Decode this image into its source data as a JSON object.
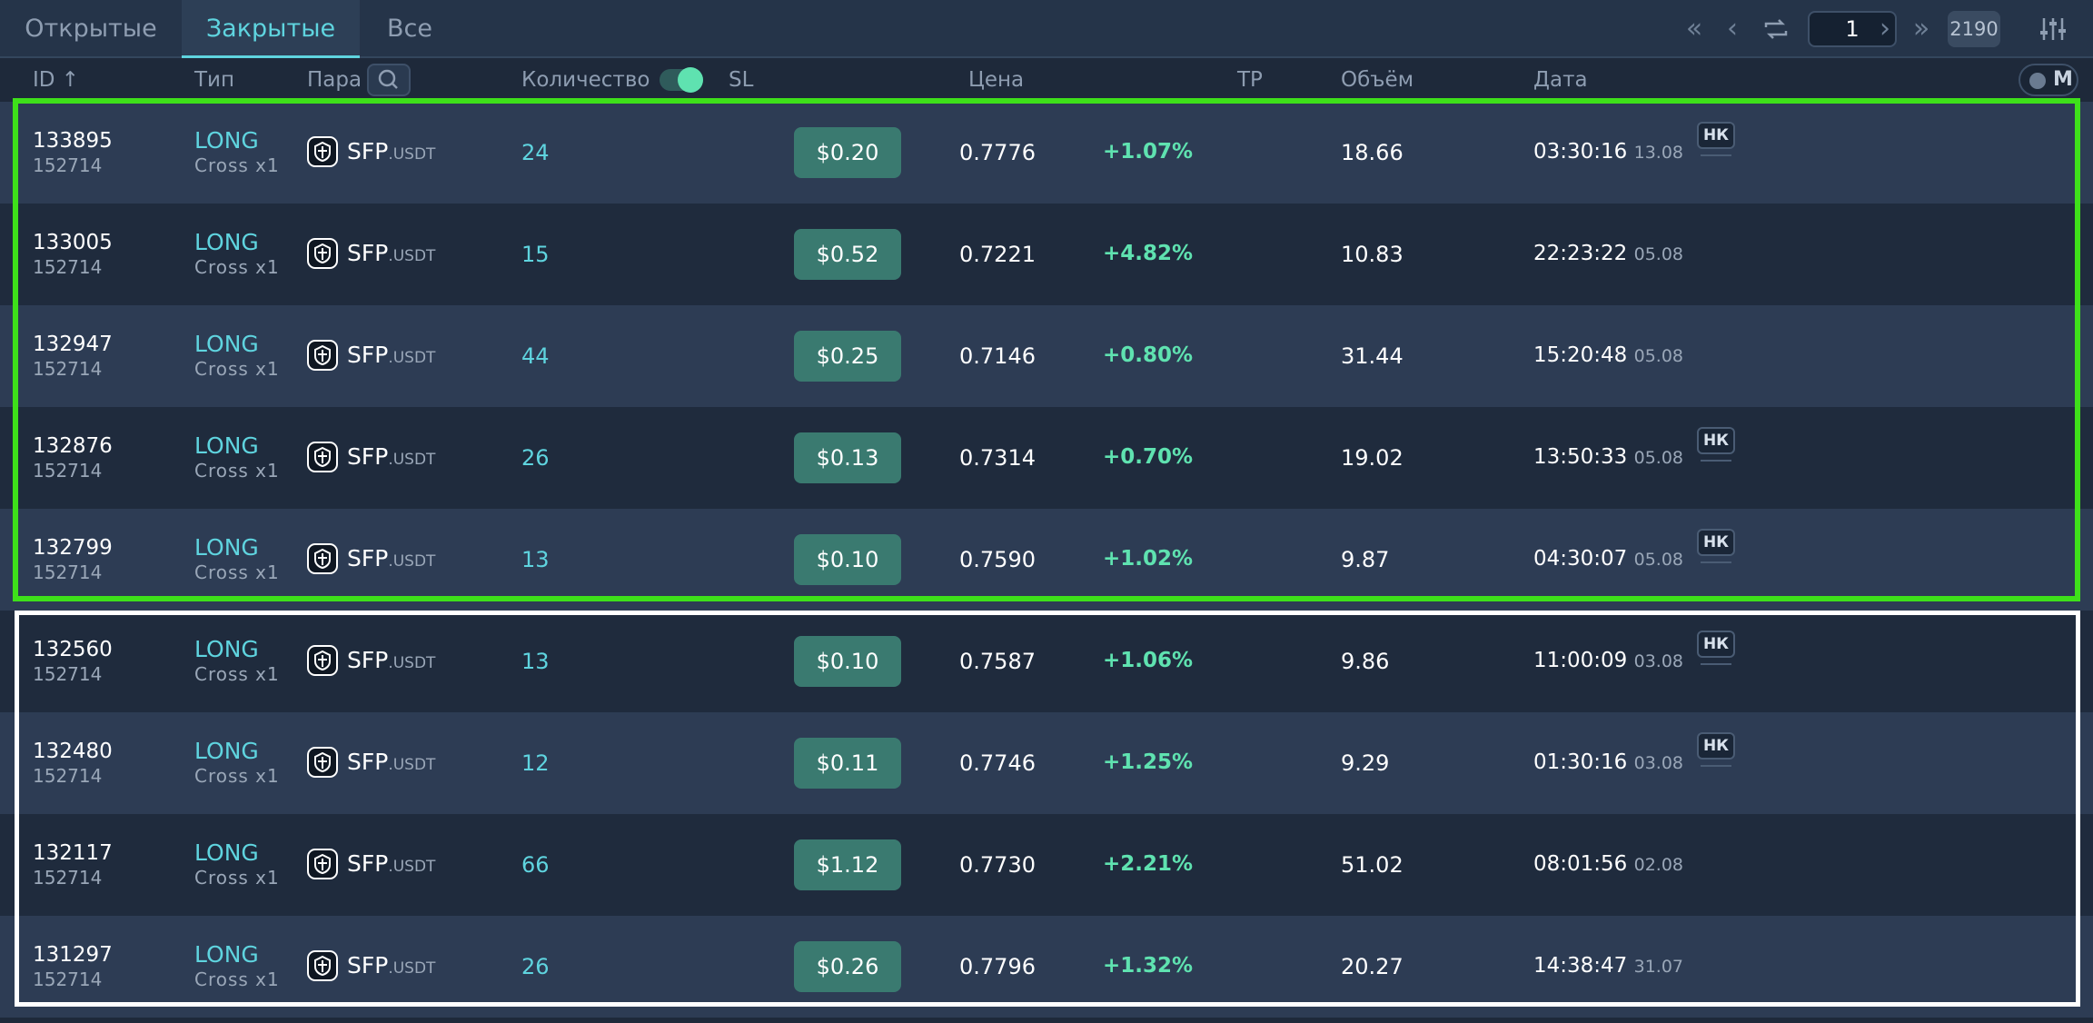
{
  "tabs": [
    {
      "label": "Открытые"
    },
    {
      "label": "Закрытые"
    },
    {
      "label": "Все"
    }
  ],
  "active_tab": "Закрытые",
  "pagination": {
    "page": "1",
    "total": "2190"
  },
  "columns": {
    "id": "ID ↑",
    "type": "Тип",
    "pair": "Пара",
    "qty": "Количество",
    "sl": "SL",
    "price": "Цена",
    "tp": "TP",
    "volume": "Объём",
    "date": "Дата"
  },
  "mode_label": "M",
  "badge_label": "НК",
  "colors": {
    "accent": "#5fd4df",
    "profit": "#5fe2b0",
    "sl_button": "#3a7a70",
    "highlight_green": "#3ee01a"
  },
  "rows": [
    {
      "id": "133895",
      "sub_id": "152714",
      "type": "LONG",
      "margin": "Cross x1",
      "base": "SFP",
      "quote": ".USDT",
      "qty": "24",
      "sl": "$0.20",
      "price": "0.7776",
      "pct": "+1.07%",
      "volume": "18.66",
      "time": "03:30:16",
      "day": "13.08",
      "badge": true
    },
    {
      "id": "133005",
      "sub_id": "152714",
      "type": "LONG",
      "margin": "Cross x1",
      "base": "SFP",
      "quote": ".USDT",
      "qty": "15",
      "sl": "$0.52",
      "price": "0.7221",
      "pct": "+4.82%",
      "volume": "10.83",
      "time": "22:23:22",
      "day": "05.08",
      "badge": false
    },
    {
      "id": "132947",
      "sub_id": "152714",
      "type": "LONG",
      "margin": "Cross x1",
      "base": "SFP",
      "quote": ".USDT",
      "qty": "44",
      "sl": "$0.25",
      "price": "0.7146",
      "pct": "+0.80%",
      "volume": "31.44",
      "time": "15:20:48",
      "day": "05.08",
      "badge": false
    },
    {
      "id": "132876",
      "sub_id": "152714",
      "type": "LONG",
      "margin": "Cross x1",
      "base": "SFP",
      "quote": ".USDT",
      "qty": "26",
      "sl": "$0.13",
      "price": "0.7314",
      "pct": "+0.70%",
      "volume": "19.02",
      "time": "13:50:33",
      "day": "05.08",
      "badge": true
    },
    {
      "id": "132799",
      "sub_id": "152714",
      "type": "LONG",
      "margin": "Cross x1",
      "base": "SFP",
      "quote": ".USDT",
      "qty": "13",
      "sl": "$0.10",
      "price": "0.7590",
      "pct": "+1.02%",
      "volume": "9.87",
      "time": "04:30:07",
      "day": "05.08",
      "badge": true
    },
    {
      "id": "132560",
      "sub_id": "152714",
      "type": "LONG",
      "margin": "Cross x1",
      "base": "SFP",
      "quote": ".USDT",
      "qty": "13",
      "sl": "$0.10",
      "price": "0.7587",
      "pct": "+1.06%",
      "volume": "9.86",
      "time": "11:00:09",
      "day": "03.08",
      "badge": true
    },
    {
      "id": "132480",
      "sub_id": "152714",
      "type": "LONG",
      "margin": "Cross x1",
      "base": "SFP",
      "quote": ".USDT",
      "qty": "12",
      "sl": "$0.11",
      "price": "0.7746",
      "pct": "+1.25%",
      "volume": "9.29",
      "time": "01:30:16",
      "day": "03.08",
      "badge": true
    },
    {
      "id": "132117",
      "sub_id": "152714",
      "type": "LONG",
      "margin": "Cross x1",
      "base": "SFP",
      "quote": ".USDT",
      "qty": "66",
      "sl": "$1.12",
      "price": "0.7730",
      "pct": "+2.21%",
      "volume": "51.02",
      "time": "08:01:56",
      "day": "02.08",
      "badge": false
    },
    {
      "id": "131297",
      "sub_id": "152714",
      "type": "LONG",
      "margin": "Cross x1",
      "base": "SFP",
      "quote": ".USDT",
      "qty": "26",
      "sl": "$0.26",
      "price": "0.7796",
      "pct": "+1.32%",
      "volume": "20.27",
      "time": "14:38:47",
      "day": "31.07",
      "badge": false
    }
  ]
}
